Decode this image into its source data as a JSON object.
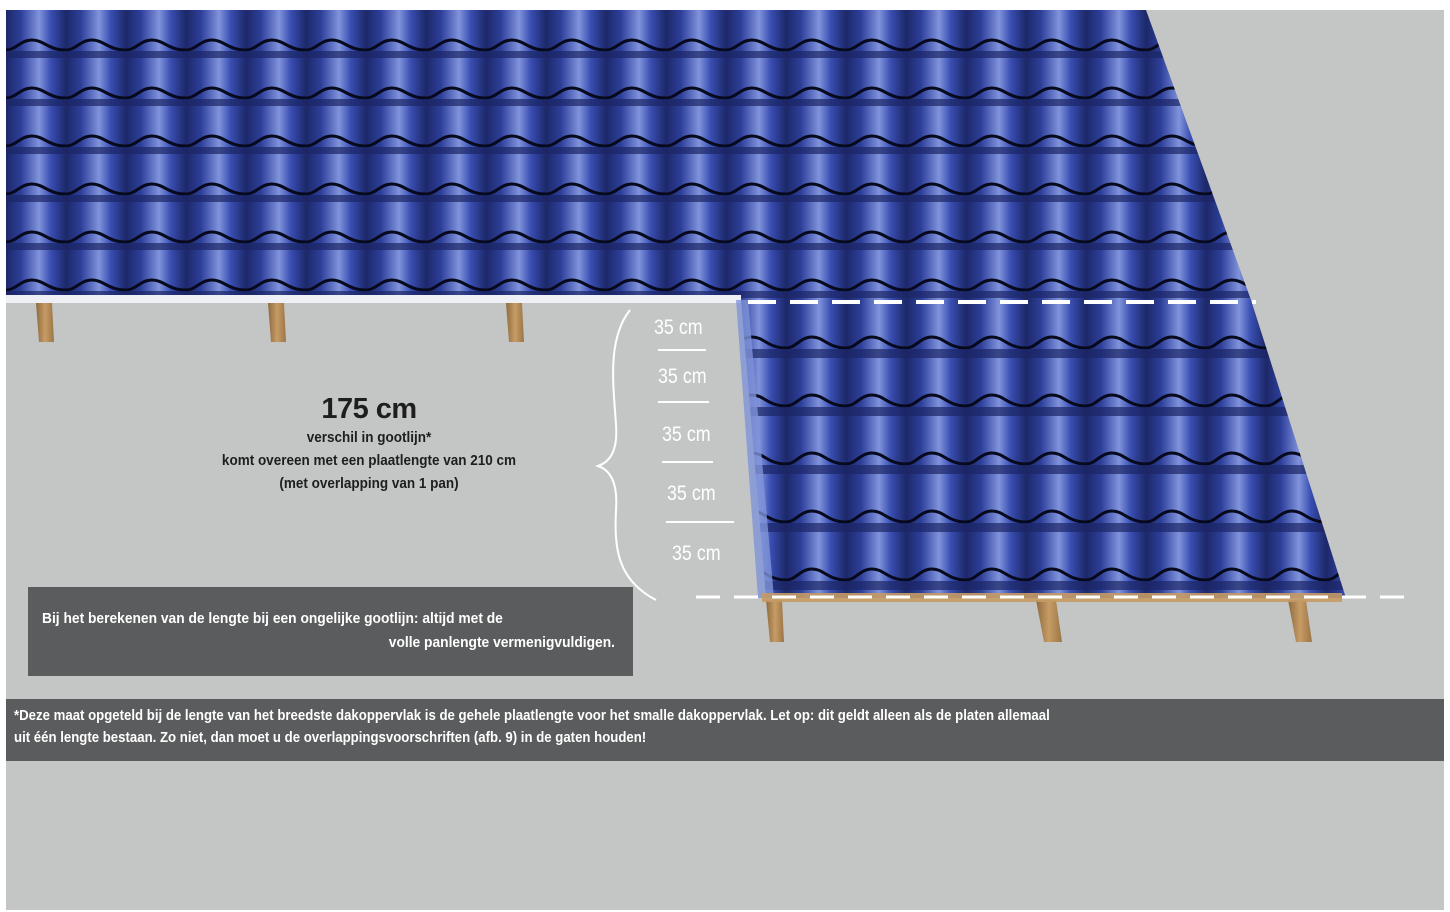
{
  "callout": {
    "value": "175 cm",
    "lines": [
      "verschil in gootlijn*",
      "komt overeen met een plaatlengte van 210 cm",
      "(met overlapping van 1 pan)"
    ]
  },
  "tile_labels": [
    "35 cm",
    "35 cm",
    "35 cm",
    "35 cm",
    "35 cm"
  ],
  "note": {
    "line1": "Bij het berekenen van de lengte bij een ongelijke gootlijn: altijd met de",
    "line2": "volle panlengte vermenigvuldigen."
  },
  "footnote": {
    "line1": "*Deze maat opgeteld bij de lengte van het breedste dakoppervlak is de gehele plaatlengte voor het smalle dakoppervlak. Let op: dit geldt alleen als de platen allemaal",
    "line2": "uit één lengte bestaan. Zo niet, dan moet u de overlappingsvoorschriften (afb. 9) in de gaten houden!"
  },
  "colors": {
    "background": "#c4c6c6",
    "tile_blue": "#2d3f9a",
    "tile_highlight": "#8fa2e8",
    "tile_shadow": "#1a2461",
    "panel_gray": "#5b5c5d",
    "batten_wood": "#b78d5a"
  },
  "icons": [
    "brace-icon",
    "dashed-eave-line"
  ]
}
